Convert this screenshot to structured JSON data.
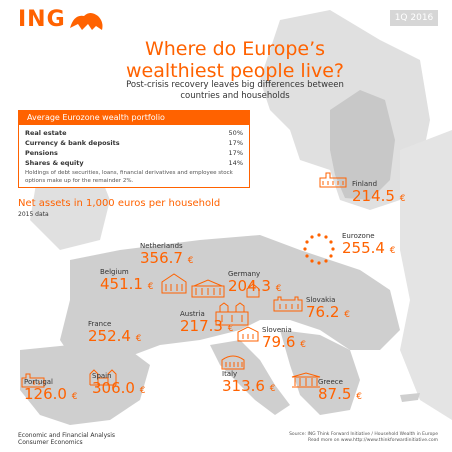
{
  "brand": "ING",
  "period": "1Q 2016",
  "title_line1": "Where do Europe’s",
  "title_line2": "wealthiest people live?",
  "subtitle_line1": "Post-crisis recovery leaves big differences between",
  "subtitle_line2": "countries and households",
  "portfolio": {
    "heading": "Average Eurozone wealth portfolio",
    "rows": [
      {
        "label": "Real estate",
        "value": "50%"
      },
      {
        "label": "Currency & bank deposits",
        "value": "17%"
      },
      {
        "label": "Pensions",
        "value": "17%"
      },
      {
        "label": "Shares & equity",
        "value": "14%"
      }
    ],
    "note": "Holdings of debt securities, loans, financial derivatives and employee stock options make up for the remainder 2%."
  },
  "net_assets_title": "Net assets in 1,000 euros per household",
  "net_assets_sub": "2015 data",
  "countries": [
    {
      "name": "Finland",
      "value": "214.5",
      "currency": "€"
    },
    {
      "name": "Eurozone",
      "value": "255.4",
      "currency": "€"
    },
    {
      "name": "Netherlands",
      "value": "356.7",
      "currency": "€"
    },
    {
      "name": "Belgium",
      "value": "451.1",
      "currency": "€"
    },
    {
      "name": "Germany",
      "value": "204.3",
      "currency": "€"
    },
    {
      "name": "Slovakia",
      "value": "76.2",
      "currency": "€"
    },
    {
      "name": "France",
      "value": "252.4",
      "currency": "€"
    },
    {
      "name": "Austria",
      "value": "217.3",
      "currency": "€"
    },
    {
      "name": "Slovenia",
      "value": "79.6",
      "currency": "€"
    },
    {
      "name": "Portugal",
      "value": "126.0",
      "currency": "€"
    },
    {
      "name": "Spain",
      "value": "306.0",
      "currency": "€"
    },
    {
      "name": "Italy",
      "value": "313.6",
      "currency": "€"
    },
    {
      "name": "Greece",
      "value": "87.5",
      "currency": "€"
    }
  ],
  "footer_left_1": "Economic and Financial Analysis",
  "footer_left_2": "Consumer Economics",
  "footer_right_1": "Source: ING Think Forward Initiative / Household Wealth in Europe",
  "footer_right_2": "Read more on www.http://www.thinkforwardinitiative.com",
  "colors": {
    "accent": "#ff6200",
    "map": "#cfcfcf",
    "text": "#333333"
  }
}
